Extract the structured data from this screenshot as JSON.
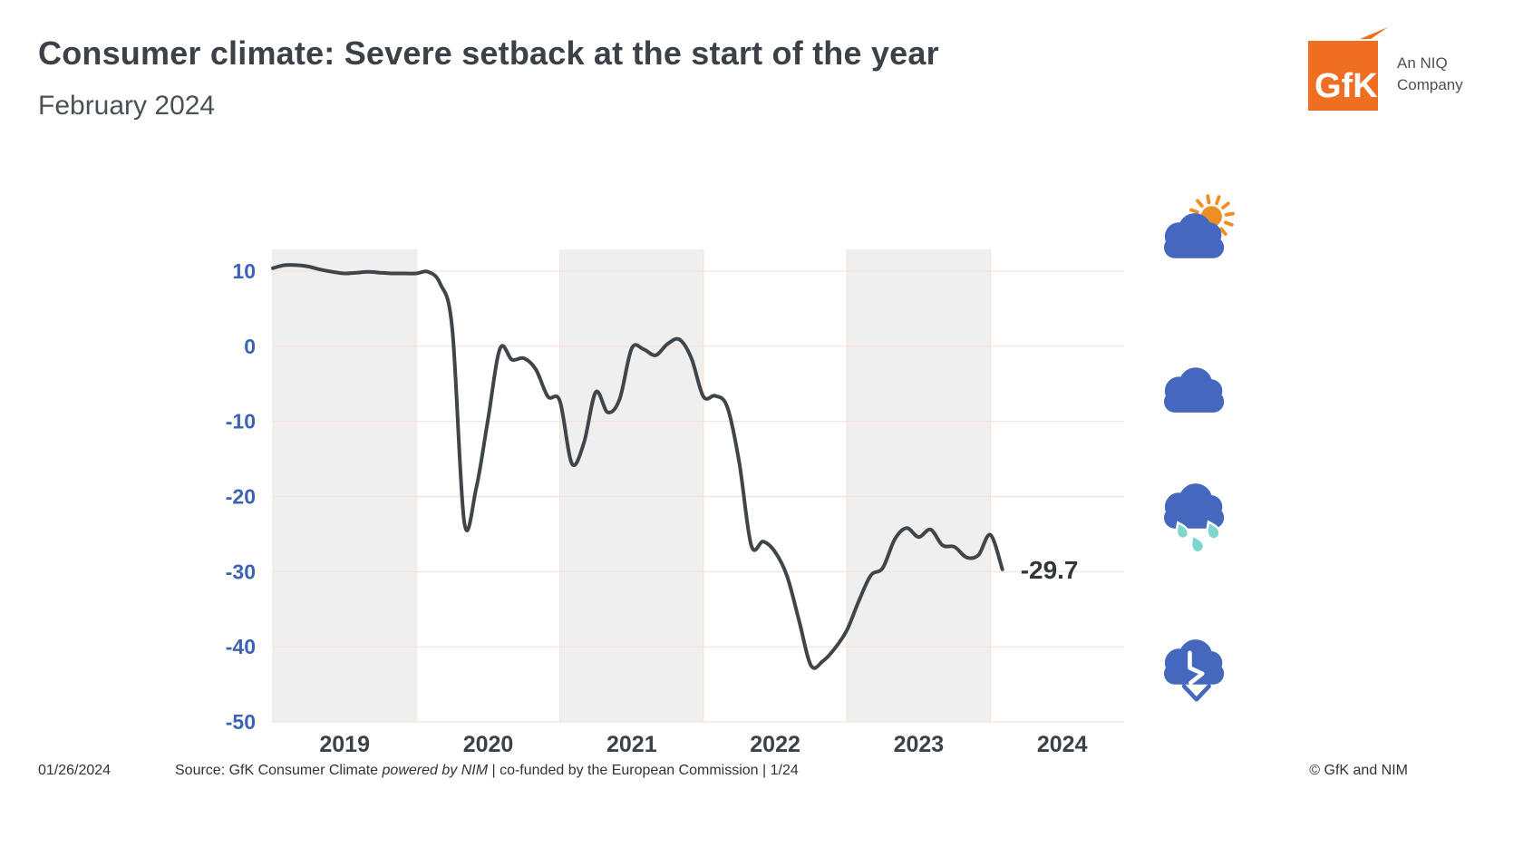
{
  "header": {
    "title": "Consumer climate: Severe setback at the start of the year",
    "subtitle": "February 2024"
  },
  "logo": {
    "mark_text": "GfK",
    "company_line1": "An NIQ",
    "company_line2": "Company",
    "orange": "#F06E22"
  },
  "icons": {
    "scale": [
      "sun-cloud-icon",
      "cloud-icon",
      "rain-cloud-icon",
      "cloud-down-arrow-icon"
    ],
    "cloud_color": "#4568BE",
    "sun_color": "#EF8E25",
    "rain_color": "#7FD6CE"
  },
  "chart_data": {
    "type": "line",
    "series": [
      {
        "name": "GfK Consumer Climate",
        "frequency": "monthly",
        "start_month": "2019-01",
        "end_month": "2024-02",
        "values": [
          10.4,
          10.8,
          10.8,
          10.6,
          10.2,
          9.9,
          9.7,
          9.8,
          9.9,
          9.8,
          9.7,
          9.7,
          9.7,
          9.9,
          8.3,
          2.3,
          -23.4,
          -18.9,
          -9.6,
          -0.3,
          -1.8,
          -1.6,
          -3.1,
          -6.7,
          -7.3,
          -15.6,
          -12.9,
          -6.1,
          -8.8,
          -7.0,
          -0.3,
          -0.4,
          -1.2,
          0.3,
          0.9,
          -1.6,
          -6.7,
          -6.6,
          -8.1,
          -15.5,
          -26.5,
          -26.0,
          -27.4,
          -30.6,
          -36.5,
          -42.5,
          -41.9,
          -40.2,
          -37.8,
          -33.9,
          -30.5,
          -29.5,
          -25.7,
          -24.2,
          -25.4,
          -24.4,
          -26.5,
          -26.7,
          -28.1,
          -27.8,
          -25.1,
          -29.7
        ]
      }
    ],
    "latest_value_label": "-29.7",
    "yticks": [
      10,
      0,
      -10,
      -20,
      -30,
      -40,
      -50
    ],
    "xticks": [
      "2019",
      "2020",
      "2021",
      "2022",
      "2023",
      "2024"
    ],
    "shaded_year_indices": [
      0,
      2,
      4
    ],
    "ylim": [
      -50,
      12.9
    ],
    "grid": true,
    "legend": "none",
    "colors": {
      "line": "#40454A",
      "grid": "#F6E0D6",
      "band": "#EFEFEF",
      "ytick": "#3F63B4",
      "xtick": "#3B4147",
      "annotation": "#31363A"
    }
  },
  "footer": {
    "date": "01/26/2024",
    "source_prefix": "Source: GfK Consumer Climate ",
    "source_powered": "powered by NIM",
    "source_suffix": " | co-funded by the European Commission | 1/24",
    "copyright": "© GfK and NIM"
  }
}
